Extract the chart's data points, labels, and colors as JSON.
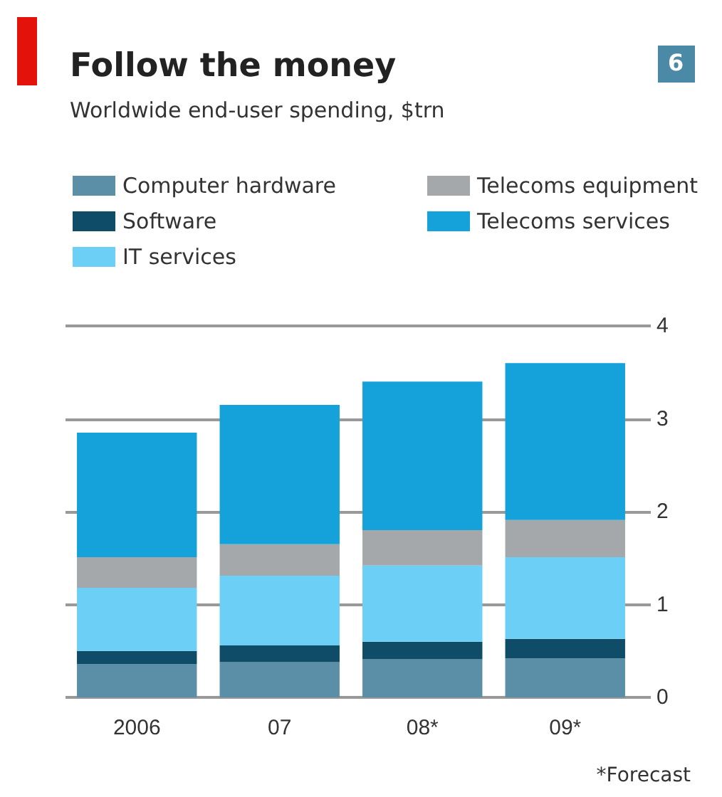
{
  "chart_data": {
    "type": "bar",
    "stacked": true,
    "title": "Follow the money",
    "subtitle": "Worldwide end-user spending, $trn",
    "categories": [
      "2006",
      "07",
      "08*",
      "09*"
    ],
    "series": [
      {
        "name": "Computer hardware",
        "color": "#5b8fa8",
        "values": [
          0.36,
          0.38,
          0.41,
          0.42
        ]
      },
      {
        "name": "Software",
        "color": "#0f4c68",
        "values": [
          0.14,
          0.18,
          0.19,
          0.21
        ]
      },
      {
        "name": "IT services",
        "color": "#6ccff5",
        "values": [
          0.68,
          0.75,
          0.82,
          0.88
        ]
      },
      {
        "name": "Telecoms equipment",
        "color": "#a5a8ab",
        "values": [
          0.33,
          0.34,
          0.38,
          0.4
        ]
      },
      {
        "name": "Telecoms services",
        "color": "#15a2da",
        "values": [
          1.34,
          1.5,
          1.6,
          1.69
        ]
      }
    ],
    "ylim": [
      0,
      4
    ],
    "yticks": [
      0,
      1,
      2,
      3,
      4
    ],
    "grid": "y",
    "legend": "top",
    "annotations": [
      "6",
      "*Forecast"
    ]
  }
}
